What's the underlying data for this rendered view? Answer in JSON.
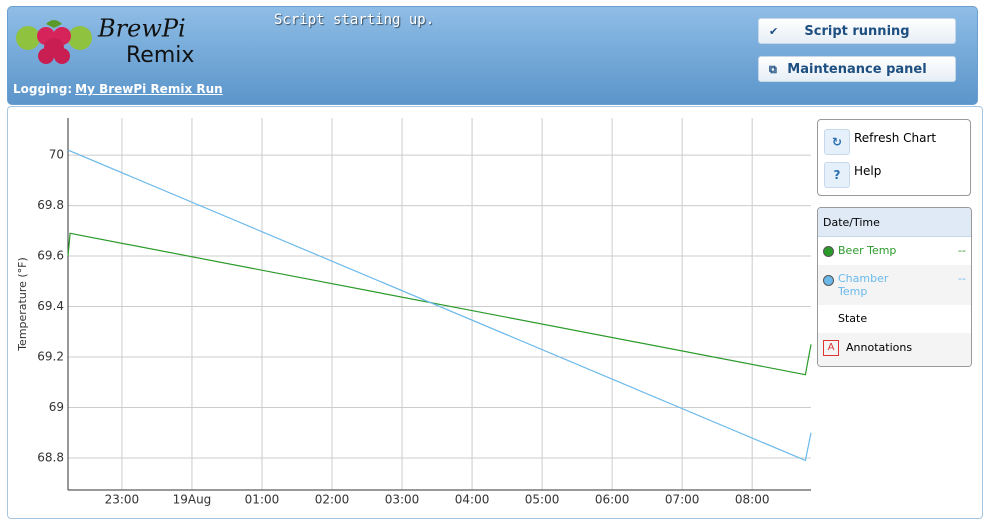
{
  "header": {
    "logo": {
      "line1": "BrewPi",
      "line2": "Remix"
    },
    "status": "Script starting up.",
    "logging_label": "Logging:",
    "logging_link": "My BrewPi Remix Run",
    "buttons": [
      "Script running",
      "Maintenance panel"
    ]
  },
  "controls": [
    {
      "label": "Refresh Chart"
    },
    {
      "icon": "?",
      "label": "Help"
    }
  ],
  "legend": {
    "header": "Date/Time",
    "values": [
      "--",
      "--"
    ],
    "extra": [
      {
        "label": "State"
      },
      {
        "icon": "A",
        "label": "Annotations"
      }
    ]
  },
  "chart_data": {
    "type": "line",
    "y_label": "Temperature (°F)",
    "xlim": [
      -1.77,
      8.84
    ],
    "xticks": [
      {
        "value": -1,
        "label": "23:00"
      },
      {
        "value": 0,
        "label": "19Aug"
      },
      {
        "value": 1,
        "label": "01:00"
      },
      {
        "value": 2,
        "label": "02:00"
      },
      {
        "value": 3,
        "label": "03:00"
      },
      {
        "value": 4,
        "label": "04:00"
      },
      {
        "value": 5,
        "label": "05:00"
      },
      {
        "value": 6,
        "label": "06:00"
      },
      {
        "value": 7,
        "label": "07:00"
      },
      {
        "value": 8,
        "label": "08:00"
      }
    ],
    "ylim": [
      68.673,
      70.147
    ],
    "yticks": [
      68.8,
      69,
      69.2,
      69.4,
      69.6,
      69.8,
      70
    ],
    "grid": true,
    "series": [
      {
        "name": "Beer Temp",
        "color": "#2a9a2a",
        "x": [
          -1.77,
          -1.74,
          8.76,
          8.84
        ],
        "values": [
          69.6,
          69.69,
          69.13,
          69.25
        ]
      },
      {
        "name": "Chamber Temp",
        "color": "#6bb9ea",
        "x": [
          -1.77,
          8.76,
          8.84
        ],
        "values": [
          70.02,
          68.79,
          68.9
        ]
      }
    ]
  }
}
